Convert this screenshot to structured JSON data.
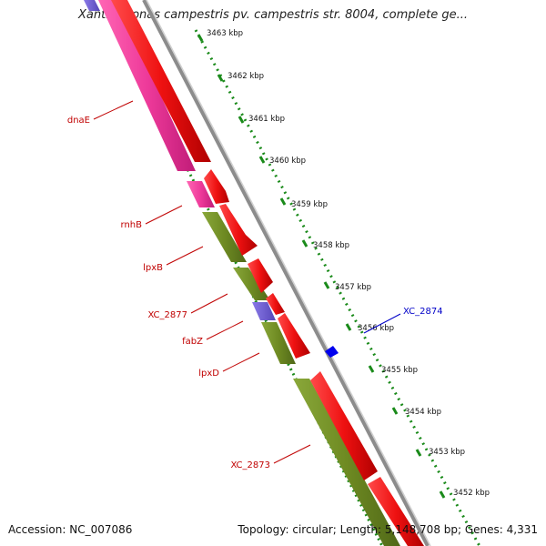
{
  "header": {
    "title": "Xanthomonas campestris pv. campestris str. 8004, complete ge..."
  },
  "footer": {
    "accession": "Accession: NC_007086",
    "summary": "Topology: circular; Length: 5,148,708 bp; Genes: 4,331"
  },
  "colors": {
    "forward_cds": "#ee1111",
    "reverse_pink": "#ee3a9a",
    "reverse_olive": "#6e8a22",
    "reverse_purple": "#6a5acd",
    "backbone": "#8c8c8c",
    "dotted_ruler": "#1a8a1a",
    "label_red": "#c00000",
    "label_blue": "#0000c8"
  },
  "ruler": {
    "ticks": [
      "3463 kbp",
      "3462 kbp",
      "3461 kbp",
      "3460 kbp",
      "3459 kbp",
      "3458 kbp",
      "3457 kbp",
      "3456 kbp",
      "3455 kbp",
      "3454 kbp",
      "3453 kbp",
      "3452 kbp"
    ]
  },
  "genes": {
    "left_labels": [
      "dnaE",
      "rnhB",
      "lpxB",
      "XC_2877",
      "fabZ",
      "lpxD",
      "XC_2873"
    ],
    "right_labels": [
      "XC_2874"
    ]
  }
}
